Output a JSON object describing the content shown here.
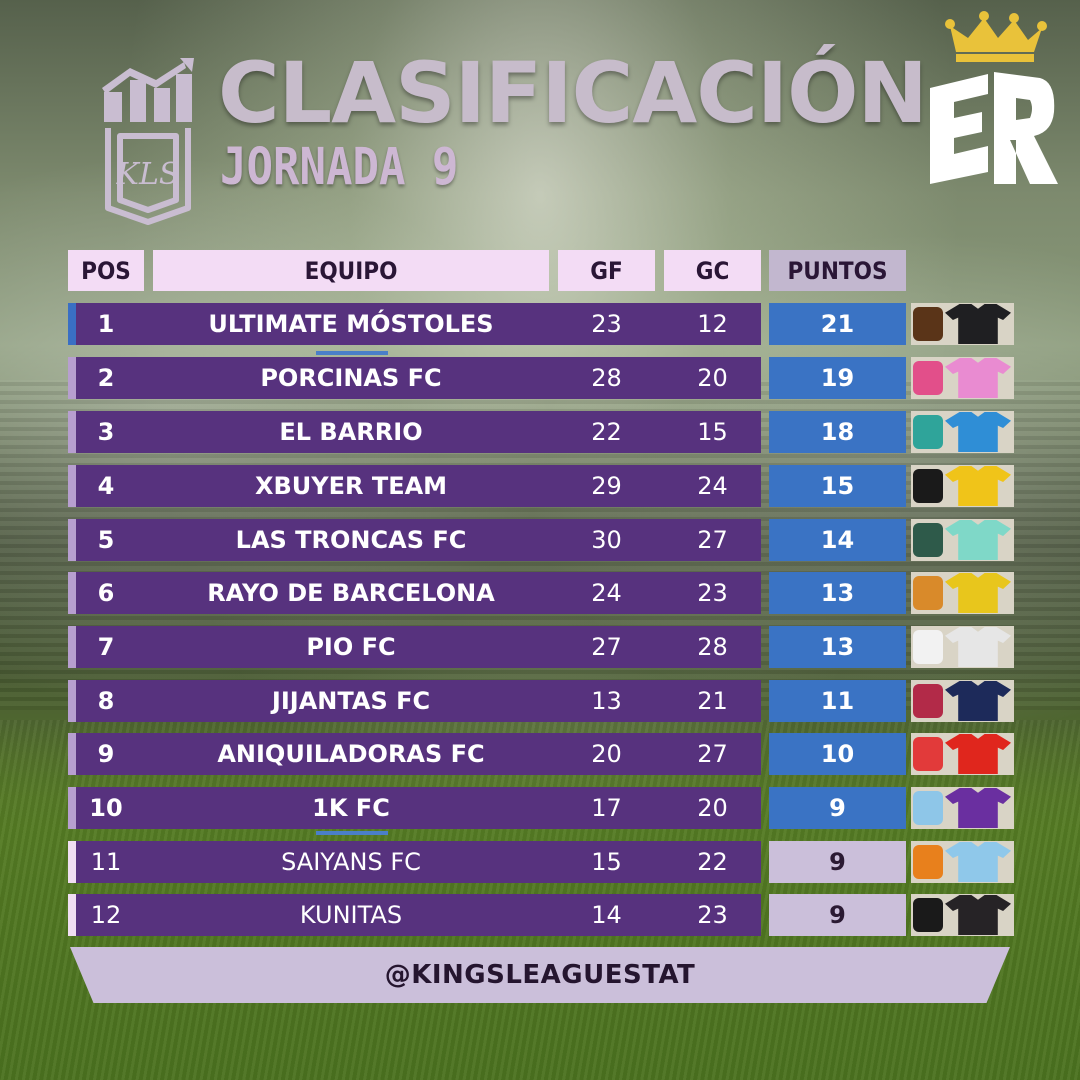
{
  "header": {
    "title": "CLASIFICACIÓN",
    "subtitle": "JORNADA 9",
    "logo_left": "KLS",
    "logo_right": "ER"
  },
  "columns": {
    "pos": "POS",
    "team": "EQUIPO",
    "gf": "GF",
    "gc": "GC",
    "pts": "PUNTOS"
  },
  "rows": [
    {
      "pos": "1",
      "team": "ULTIMATE MÓSTOLES",
      "gf": "23",
      "gc": "12",
      "pts": "21",
      "crest": "#5a3418",
      "shirt": "#1f1f22"
    },
    {
      "pos": "2",
      "team": "PORCINAS FC",
      "gf": "28",
      "gc": "20",
      "pts": "19",
      "crest": "#e24f8a",
      "shirt": "#e98bd1"
    },
    {
      "pos": "3",
      "team": "EL BARRIO",
      "gf": "22",
      "gc": "15",
      "pts": "18",
      "crest": "#2fa49a",
      "shirt": "#2f8ed6"
    },
    {
      "pos": "4",
      "team": "XBUYER TEAM",
      "gf": "29",
      "gc": "24",
      "pts": "15",
      "crest": "#1a1a1a",
      "shirt": "#f0c419"
    },
    {
      "pos": "5",
      "team": "LAS TRONCAS FC",
      "gf": "30",
      "gc": "27",
      "pts": "14",
      "crest": "#2e5a4a",
      "shirt": "#7fd8c8"
    },
    {
      "pos": "6",
      "team": "RAYO DE BARCELONA",
      "gf": "24",
      "gc": "23",
      "pts": "13",
      "crest": "#d98a2a",
      "shirt": "#e8c61c"
    },
    {
      "pos": "7",
      "team": "PIO FC",
      "gf": "27",
      "gc": "28",
      "pts": "13",
      "crest": "#f2f2f2",
      "shirt": "#e6e6e6"
    },
    {
      "pos": "8",
      "team": "JIJANTAS FC",
      "gf": "13",
      "gc": "21",
      "pts": "11",
      "crest": "#b22a48",
      "shirt": "#1d2a5a"
    },
    {
      "pos": "9",
      "team": "ANIQUILADORAS FC",
      "gf": "20",
      "gc": "27",
      "pts": "10",
      "crest": "#e23a3a",
      "shirt": "#e0261d"
    },
    {
      "pos": "10",
      "team": "1K FC",
      "gf": "17",
      "gc": "20",
      "pts": "9",
      "crest": "#8ec6e8",
      "shirt": "#6a2fa0"
    },
    {
      "pos": "11",
      "team": "SAIYANS FC",
      "gf": "15",
      "gc": "22",
      "pts": "9",
      "crest": "#e8801c",
      "shirt": "#8fc8ea"
    },
    {
      "pos": "12",
      "team": "KUNITAS",
      "gf": "14",
      "gc": "23",
      "pts": "9",
      "crest": "#1a1a1a",
      "shirt": "#262326"
    }
  ],
  "stripe_colors": {
    "leader": "#3a6fc4",
    "upper": "#b79fcf",
    "lower": "#f0def2"
  },
  "footer": {
    "handle": "@KINGSLEAGUESTAT"
  }
}
